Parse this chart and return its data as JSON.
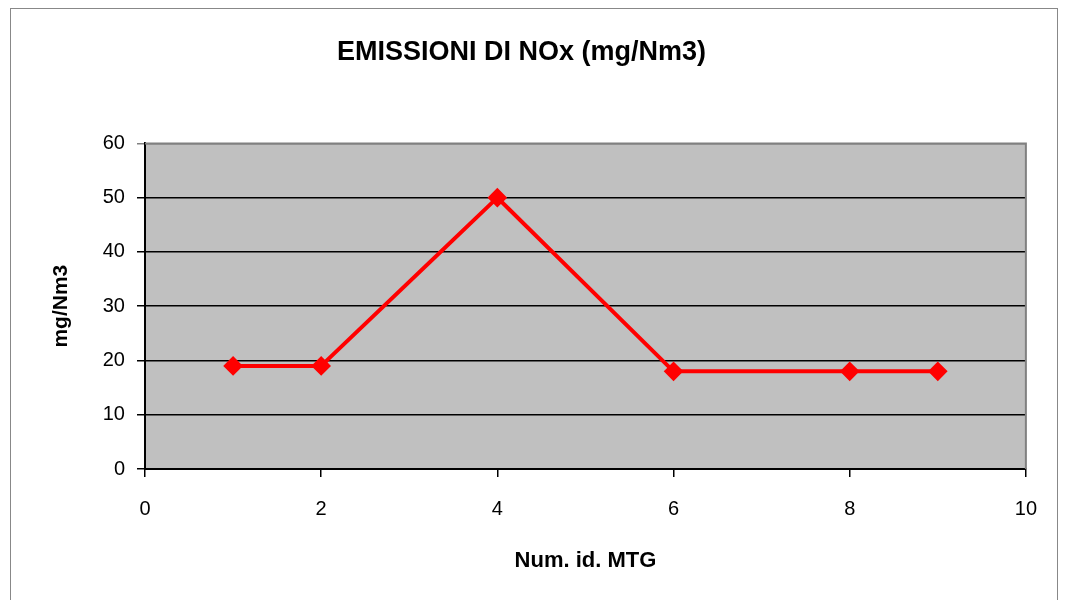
{
  "chart_data": {
    "type": "line",
    "title": "EMISSIONI DI NOx (mg/Nm3)",
    "xlabel": "Num. id. MTG",
    "ylabel": "mg/Nm3",
    "x": [
      1,
      2,
      4,
      6,
      8,
      9
    ],
    "series": [
      {
        "color": "#ff0000",
        "values": [
          19,
          19,
          50,
          18,
          18,
          18
        ]
      }
    ],
    "xlim": [
      0,
      10
    ],
    "xticks": [
      0,
      2,
      4,
      6,
      8,
      10
    ],
    "ylim": [
      0,
      60
    ],
    "yticks": [
      0,
      10,
      20,
      30,
      40,
      50,
      60
    ],
    "grid": "y",
    "legend": false,
    "marker": "diamond",
    "line_style": "solid"
  }
}
